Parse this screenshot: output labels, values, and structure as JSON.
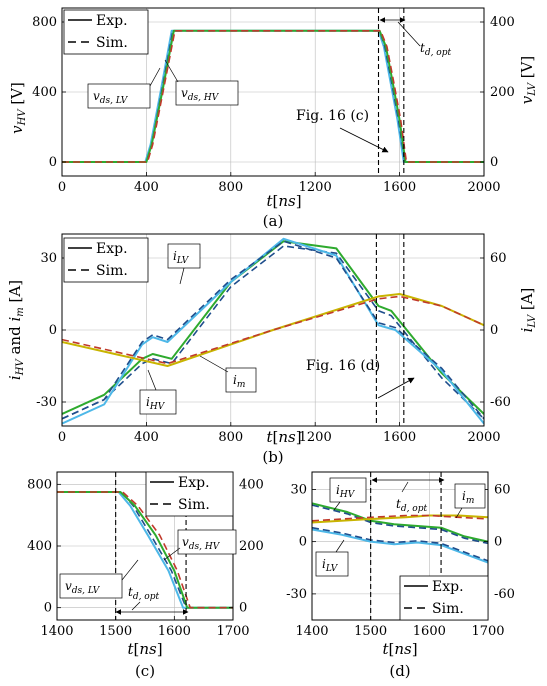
{
  "colors": {
    "vds_lv_exp": "#4db8e8",
    "vds_lv_sim": "#1f4e8c",
    "vds_hv_exp": "#2eaa2e",
    "vds_hv_sim": "#c0392b",
    "i_lv_exp": "#4db8e8",
    "i_lv_sim": "#1f4e8c",
    "i_hv_exp": "#2eaa2e",
    "i_hv_sim": "#1f4e8c",
    "i_m_exp": "#c8b400",
    "i_m_sim": "#c0392b",
    "grid": "#bbbbbb"
  },
  "legend": {
    "exp": "Exp.",
    "sim": "Sim."
  },
  "chart_data": [
    {
      "id": "a",
      "type": "line",
      "caption": "(a)",
      "xlabel": "t[ns]",
      "ylabel_left": "v_HV [V]",
      "ylabel_right": "v_LV [V]",
      "xlim": [
        0,
        2000
      ],
      "ylim_left": [
        -80,
        880
      ],
      "ylim_right": [
        -40,
        440
      ],
      "xticks": [
        "0",
        "400",
        "800",
        "1200",
        "1600",
        "2000"
      ],
      "yticks_left": [
        "0",
        "400",
        "800"
      ],
      "yticks_right": [
        "0",
        "200",
        "400"
      ],
      "grid": true,
      "legend_position": "top-left",
      "vlines": [
        1500,
        1620
      ],
      "annotations": [
        "v_ds,LV",
        "v_ds,HV",
        "t_d,opt",
        "Fig. 16 (c)"
      ],
      "series": [
        {
          "name": "v_ds,LV",
          "kind": "exp",
          "x": [
            0,
            395,
            420,
            470,
            520,
            1500,
            1525,
            1555,
            1590,
            1620,
            2000
          ],
          "y": [
            0,
            0,
            100,
            420,
            750,
            750,
            660,
            470,
            240,
            0,
            0
          ]
        },
        {
          "name": "v_ds,LV",
          "kind": "sim",
          "x": [
            0,
            400,
            425,
            475,
            525,
            1505,
            1530,
            1560,
            1595,
            1625,
            2000
          ],
          "y": [
            0,
            0,
            100,
            420,
            750,
            750,
            660,
            470,
            240,
            0,
            0
          ]
        },
        {
          "name": "v_ds,HV",
          "kind": "exp",
          "x": [
            0,
            400,
            425,
            478,
            530,
            1505,
            1535,
            1565,
            1600,
            1628,
            2000
          ],
          "y": [
            0,
            0,
            100,
            420,
            750,
            750,
            660,
            470,
            240,
            0,
            0
          ]
        },
        {
          "name": "v_ds,HV",
          "kind": "sim",
          "x": [
            0,
            405,
            430,
            482,
            535,
            1510,
            1540,
            1570,
            1605,
            1632,
            2000
          ],
          "y": [
            0,
            0,
            100,
            420,
            750,
            750,
            660,
            470,
            240,
            0,
            0
          ]
        }
      ]
    },
    {
      "id": "b",
      "type": "line",
      "caption": "(b)",
      "xlabel": "t[ns]",
      "ylabel_left": "i_HV and i_m [A]",
      "ylabel_right": "i_LV [A]",
      "xlim": [
        0,
        2000
      ],
      "ylim_left": [
        -40,
        40
      ],
      "ylim_right": [
        -80,
        80
      ],
      "xticks": [
        "0",
        "400",
        "800",
        "1200",
        "1600",
        "2000"
      ],
      "yticks_left": [
        "-30",
        "0",
        "30"
      ],
      "yticks_right": [
        "-60",
        "0",
        "60"
      ],
      "grid": true,
      "legend_position": "top-left",
      "vlines": [
        1490,
        1620
      ],
      "annotations": [
        "i_LV",
        "i_HV",
        "i_m",
        "Fig. 16 (d)"
      ],
      "series": [
        {
          "name": "i_HV",
          "kind": "exp",
          "x": [
            0,
            200,
            380,
            430,
            520,
            800,
            1050,
            1300,
            1500,
            1560,
            1800,
            2000
          ],
          "y": [
            -35,
            -27,
            -12,
            -10,
            -12,
            20,
            37,
            34,
            10,
            8,
            -18,
            -35
          ]
        },
        {
          "name": "i_HV",
          "kind": "sim",
          "x": [
            0,
            200,
            380,
            430,
            520,
            800,
            1050,
            1300,
            1500,
            1560,
            1800,
            2000
          ],
          "y": [
            -37,
            -29,
            -14,
            -12,
            -14,
            18,
            35,
            32,
            8,
            6,
            -20,
            -37
          ]
        },
        {
          "name": "i_LV",
          "kind": "exp",
          "x": [
            0,
            200,
            380,
            430,
            500,
            800,
            1050,
            1300,
            1500,
            1580,
            1800,
            2000
          ],
          "y": [
            -78,
            -62,
            -12,
            -6,
            -10,
            40,
            76,
            62,
            4,
            0,
            -34,
            -78
          ]
        },
        {
          "name": "i_LV",
          "kind": "sim",
          "x": [
            0,
            200,
            380,
            430,
            500,
            800,
            1050,
            1300,
            1500,
            1580,
            1800,
            2000
          ],
          "y": [
            -74,
            -58,
            -10,
            -4,
            -8,
            42,
            74,
            60,
            6,
            2,
            -32,
            -74
          ]
        },
        {
          "name": "i_m",
          "kind": "exp",
          "x": [
            0,
            250,
            500,
            1000,
            1500,
            1600,
            1800,
            2000
          ],
          "y": [
            -5,
            -10,
            -15,
            0,
            14,
            15,
            10,
            2
          ]
        },
        {
          "name": "i_m",
          "kind": "sim",
          "x": [
            0,
            250,
            500,
            1000,
            1500,
            1600,
            1800,
            2000
          ],
          "y": [
            -4,
            -9,
            -14,
            0,
            13,
            14,
            10,
            2
          ]
        }
      ]
    },
    {
      "id": "c",
      "type": "line",
      "caption": "(c)",
      "xlabel": "t[ns]",
      "xlim": [
        1400,
        1700
      ],
      "ylim_left": [
        -80,
        880
      ],
      "ylim_right": [
        -40,
        440
      ],
      "xticks": [
        "1400",
        "1500",
        "1600",
        "1700"
      ],
      "yticks_left": [
        "0",
        "400",
        "800"
      ],
      "yticks_right": [
        "0",
        "200",
        "400"
      ],
      "grid": true,
      "legend_position": "top-right",
      "vlines": [
        1500,
        1620
      ],
      "annotations": [
        "v_ds,LV",
        "v_ds,HV",
        "t_d,opt"
      ],
      "series": [
        {
          "name": "v_ds,LV",
          "kind": "exp",
          "x": [
            1400,
            1505,
            1525,
            1555,
            1590,
            1615,
            1700
          ],
          "y": [
            750,
            750,
            660,
            470,
            240,
            0,
            0
          ]
        },
        {
          "name": "v_ds,LV",
          "kind": "sim",
          "x": [
            1400,
            1510,
            1530,
            1560,
            1595,
            1620,
            1700
          ],
          "y": [
            750,
            750,
            660,
            470,
            240,
            0,
            0
          ]
        },
        {
          "name": "v_ds,HV",
          "kind": "exp",
          "x": [
            1400,
            1508,
            1533,
            1568,
            1600,
            1622,
            1700
          ],
          "y": [
            750,
            750,
            660,
            470,
            240,
            0,
            0
          ]
        },
        {
          "name": "v_ds,HV",
          "kind": "sim",
          "x": [
            1400,
            1512,
            1538,
            1575,
            1605,
            1627,
            1700
          ],
          "y": [
            750,
            750,
            660,
            470,
            240,
            0,
            0
          ]
        }
      ]
    },
    {
      "id": "d",
      "type": "line",
      "caption": "(d)",
      "xlabel": "t[ns]",
      "xlim": [
        1400,
        1700
      ],
      "ylim_left": [
        -45,
        40
      ],
      "ylim_right": [
        -90,
        80
      ],
      "xticks": [
        "1400",
        "1500",
        "1600",
        "1700"
      ],
      "yticks_left": [
        "-30",
        "0",
        "30"
      ],
      "yticks_right": [
        "-60",
        "0",
        "60"
      ],
      "grid": true,
      "legend_position": "bottom-right",
      "vlines": [
        1500,
        1620
      ],
      "annotations": [
        "i_HV",
        "i_m",
        "i_LV",
        "t_d,opt"
      ],
      "series": [
        {
          "name": "i_HV",
          "kind": "exp",
          "x": [
            1400,
            1460,
            1500,
            1540,
            1580,
            1620,
            1660,
            1700
          ],
          "y": [
            22,
            17,
            12,
            10,
            9,
            8,
            3,
            0
          ]
        },
        {
          "name": "i_HV",
          "kind": "sim",
          "x": [
            1400,
            1460,
            1500,
            1540,
            1580,
            1620,
            1660,
            1700
          ],
          "y": [
            21,
            16,
            11,
            9,
            8,
            7,
            2,
            -1
          ]
        },
        {
          "name": "i_LV",
          "kind": "exp",
          "x": [
            1400,
            1450,
            1500,
            1540,
            1580,
            1620,
            1660,
            1700
          ],
          "y": [
            14,
            8,
            0,
            -3,
            -1,
            -4,
            -14,
            -24
          ]
        },
        {
          "name": "i_LV",
          "kind": "sim",
          "x": [
            1400,
            1450,
            1500,
            1540,
            1580,
            1620,
            1660,
            1700
          ],
          "y": [
            16,
            10,
            2,
            -1,
            1,
            -2,
            -12,
            -22
          ]
        },
        {
          "name": "i_m",
          "kind": "exp",
          "x": [
            1400,
            1500,
            1560,
            1600,
            1650,
            1700
          ],
          "y": [
            11,
            13,
            14,
            15,
            15,
            14
          ]
        },
        {
          "name": "i_m",
          "kind": "sim",
          "x": [
            1400,
            1500,
            1560,
            1600,
            1650,
            1700
          ],
          "y": [
            12,
            14,
            15,
            15,
            14,
            13
          ]
        }
      ]
    }
  ]
}
